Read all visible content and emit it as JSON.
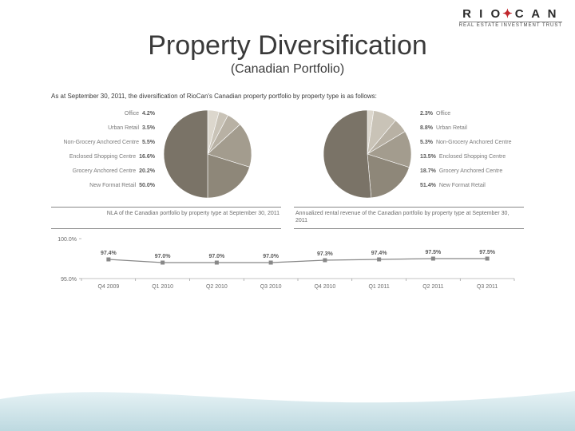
{
  "logo": {
    "brand": "RIO✦CAN",
    "tag": "REAL ESTATE INVESTMENT TRUST"
  },
  "title": "Property Diversification",
  "subtitle": "(Canadian Portfolio)",
  "intro": "As at September 30, 2011, the diversification of RioCan's Canadian property portfolio by property type is as follows:",
  "colors": {
    "text": "#3a3a3a",
    "muted": "#6c6c6c",
    "pie_border": "#ffffff",
    "axis": "#888888",
    "series": "#888888",
    "point_fill": "#888888"
  },
  "pie_left": {
    "caption": "NLA of the Canadian portfolio by property type at September 30, 2011",
    "slices": [
      {
        "label": "Office",
        "value": 4.2,
        "color": "#dcd7cd"
      },
      {
        "label": "Urban Retail",
        "value": 3.5,
        "color": "#c9c3b7"
      },
      {
        "label": "Non-Grocery Anchored Centre",
        "value": 5.5,
        "color": "#b8b1a4"
      },
      {
        "label": "Enclosed Shopping Centre",
        "value": 16.6,
        "color": "#a39c8e"
      },
      {
        "label": "Grocery Anchored Centre",
        "value": 20.2,
        "color": "#8e8779"
      },
      {
        "label": "New Format Retail",
        "value": 50.0,
        "color": "#7a7367"
      }
    ]
  },
  "pie_right": {
    "caption": "Annualized rental revenue of the Canadian portfolio by property type at September 30, 2011",
    "slices": [
      {
        "label": "Office",
        "value": 2.3,
        "color": "#dcd7cd"
      },
      {
        "label": "Urban Retail",
        "value": 8.8,
        "color": "#c9c3b7"
      },
      {
        "label": "Non-Grocery Anchored Centre",
        "value": 5.3,
        "color": "#b8b1a4"
      },
      {
        "label": "Enclosed Shopping Centre",
        "value": 13.5,
        "color": "#a39c8e"
      },
      {
        "label": "Grocery Anchored Centre",
        "value": 18.7,
        "color": "#8e8779"
      },
      {
        "label": "New Format Retail",
        "value": 51.4,
        "color": "#7a7367"
      }
    ]
  },
  "line_chart": {
    "type": "line",
    "ylim": [
      95.0,
      100.0
    ],
    "ytick_labels": [
      "95.0%",
      "100.0%"
    ],
    "categories": [
      "Q4 2009",
      "Q1 2010",
      "Q2 2010",
      "Q3 2010",
      "Q4 2010",
      "Q1 2011",
      "Q2 2011",
      "Q3 2011"
    ],
    "values": [
      97.4,
      97.0,
      97.0,
      97.0,
      97.3,
      97.4,
      97.5,
      97.5
    ],
    "point_labels": [
      "97.4%",
      "97.0%",
      "97.0%",
      "97.0%",
      "97.3%",
      "97.4%",
      "97.5%",
      "97.5%"
    ],
    "label_fontsize": 7,
    "marker": "square",
    "marker_size": 5
  },
  "background": {
    "wave_top": "#e6f2f5",
    "wave_bottom": "#bdd9e0"
  }
}
